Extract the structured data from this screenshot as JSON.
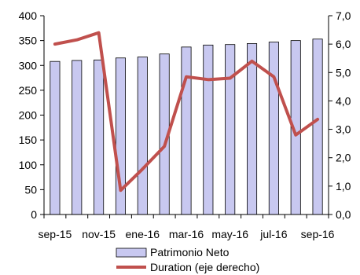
{
  "chart_data": {
    "type": "bar+line",
    "categories": [
      "sep-15",
      "oct-15",
      "nov-15",
      "dic-15",
      "ene-16",
      "feb-16",
      "mar-16",
      "abr-16",
      "may-16",
      "jun-16",
      "jul-16",
      "ago-16",
      "sep-16"
    ],
    "x_tick_labels": [
      "sep-15",
      "nov-15",
      "ene-16",
      "mar-16",
      "may-16",
      "jul-16",
      "sep-16"
    ],
    "series": [
      {
        "name": "Patrimonio Neto",
        "type": "bar",
        "axis": "left",
        "color": "#c8c8f0",
        "values": [
          308,
          310,
          311,
          315,
          317,
          323,
          337,
          341,
          342,
          344,
          347,
          350,
          353
        ]
      },
      {
        "name": "Duration (eje derecho)",
        "type": "line",
        "axis": "right",
        "color": "#c0504d",
        "values": [
          6.0,
          6.15,
          6.4,
          0.85,
          1.6,
          2.4,
          4.85,
          4.75,
          4.8,
          5.4,
          4.85,
          2.8,
          3.35
        ]
      }
    ],
    "y_left": {
      "min": 0,
      "max": 400,
      "step": 50,
      "tick_labels": [
        "0",
        "50",
        "100",
        "150",
        "200",
        "250",
        "300",
        "350",
        "400"
      ]
    },
    "y_right": {
      "min": 0,
      "max": 7,
      "step": 1,
      "tick_labels": [
        "0,0",
        "1,0",
        "2,0",
        "3,0",
        "4,0",
        "5,0",
        "6,0",
        "7,0"
      ]
    },
    "grid": false,
    "legend_position": "bottom"
  }
}
